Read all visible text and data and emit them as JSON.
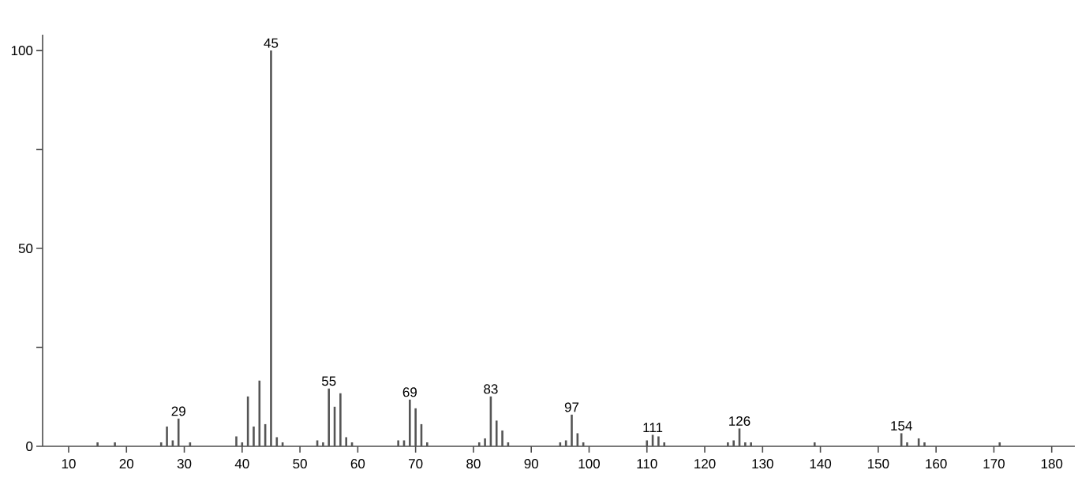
{
  "chart_data": {
    "type": "bar",
    "x": [
      15,
      18,
      26,
      27,
      28,
      29,
      31,
      39,
      40,
      41,
      42,
      43,
      44,
      45,
      46,
      47,
      53,
      54,
      55,
      56,
      57,
      58,
      59,
      67,
      68,
      69,
      70,
      71,
      72,
      81,
      82,
      83,
      84,
      85,
      86,
      95,
      96,
      97,
      98,
      99,
      110,
      111,
      112,
      113,
      124,
      125,
      126,
      127,
      128,
      139,
      154,
      155,
      157,
      158,
      171
    ],
    "values": [
      1,
      1,
      1,
      5,
      1.5,
      7,
      1,
      2.5,
      1,
      12.6,
      5,
      16.6,
      5.6,
      100,
      2.3,
      1,
      1.5,
      1,
      14.6,
      10,
      13.4,
      2.3,
      1,
      1.5,
      1.5,
      11.8,
      9.6,
      5.6,
      1,
      1,
      2,
      12.6,
      6.5,
      4,
      1,
      1,
      1.5,
      8,
      3.3,
      1,
      1.5,
      2.9,
      2.5,
      1,
      1,
      1.5,
      4.5,
      1,
      1,
      1,
      3.3,
      1,
      2,
      1,
      1
    ],
    "color": "#555555",
    "xlim": [
      5.5,
      184
    ],
    "ylim": [
      0,
      104
    ],
    "xticks": [
      10,
      20,
      30,
      40,
      50,
      60,
      70,
      80,
      90,
      100,
      110,
      120,
      130,
      140,
      150,
      160,
      170,
      180
    ],
    "yticks": [
      0,
      {
        "value": 25,
        "label": null
      },
      50,
      {
        "value": 75,
        "label": null
      },
      100
    ],
    "annotations": [
      {
        "text": "29",
        "x": 29,
        "y": 7
      },
      {
        "text": "45",
        "x": 45,
        "y": 100
      },
      {
        "text": "55",
        "x": 55,
        "y": 14.6
      },
      {
        "text": "69",
        "x": 69,
        "y": 11.8
      },
      {
        "text": "83",
        "x": 83,
        "y": 12.6
      },
      {
        "text": "97",
        "x": 97,
        "y": 8
      },
      {
        "text": "111",
        "x": 111,
        "y": 2.9
      },
      {
        "text": "126",
        "x": 126,
        "y": 4.5
      },
      {
        "text": "154",
        "x": 154,
        "y": 3.3
      }
    ]
  }
}
